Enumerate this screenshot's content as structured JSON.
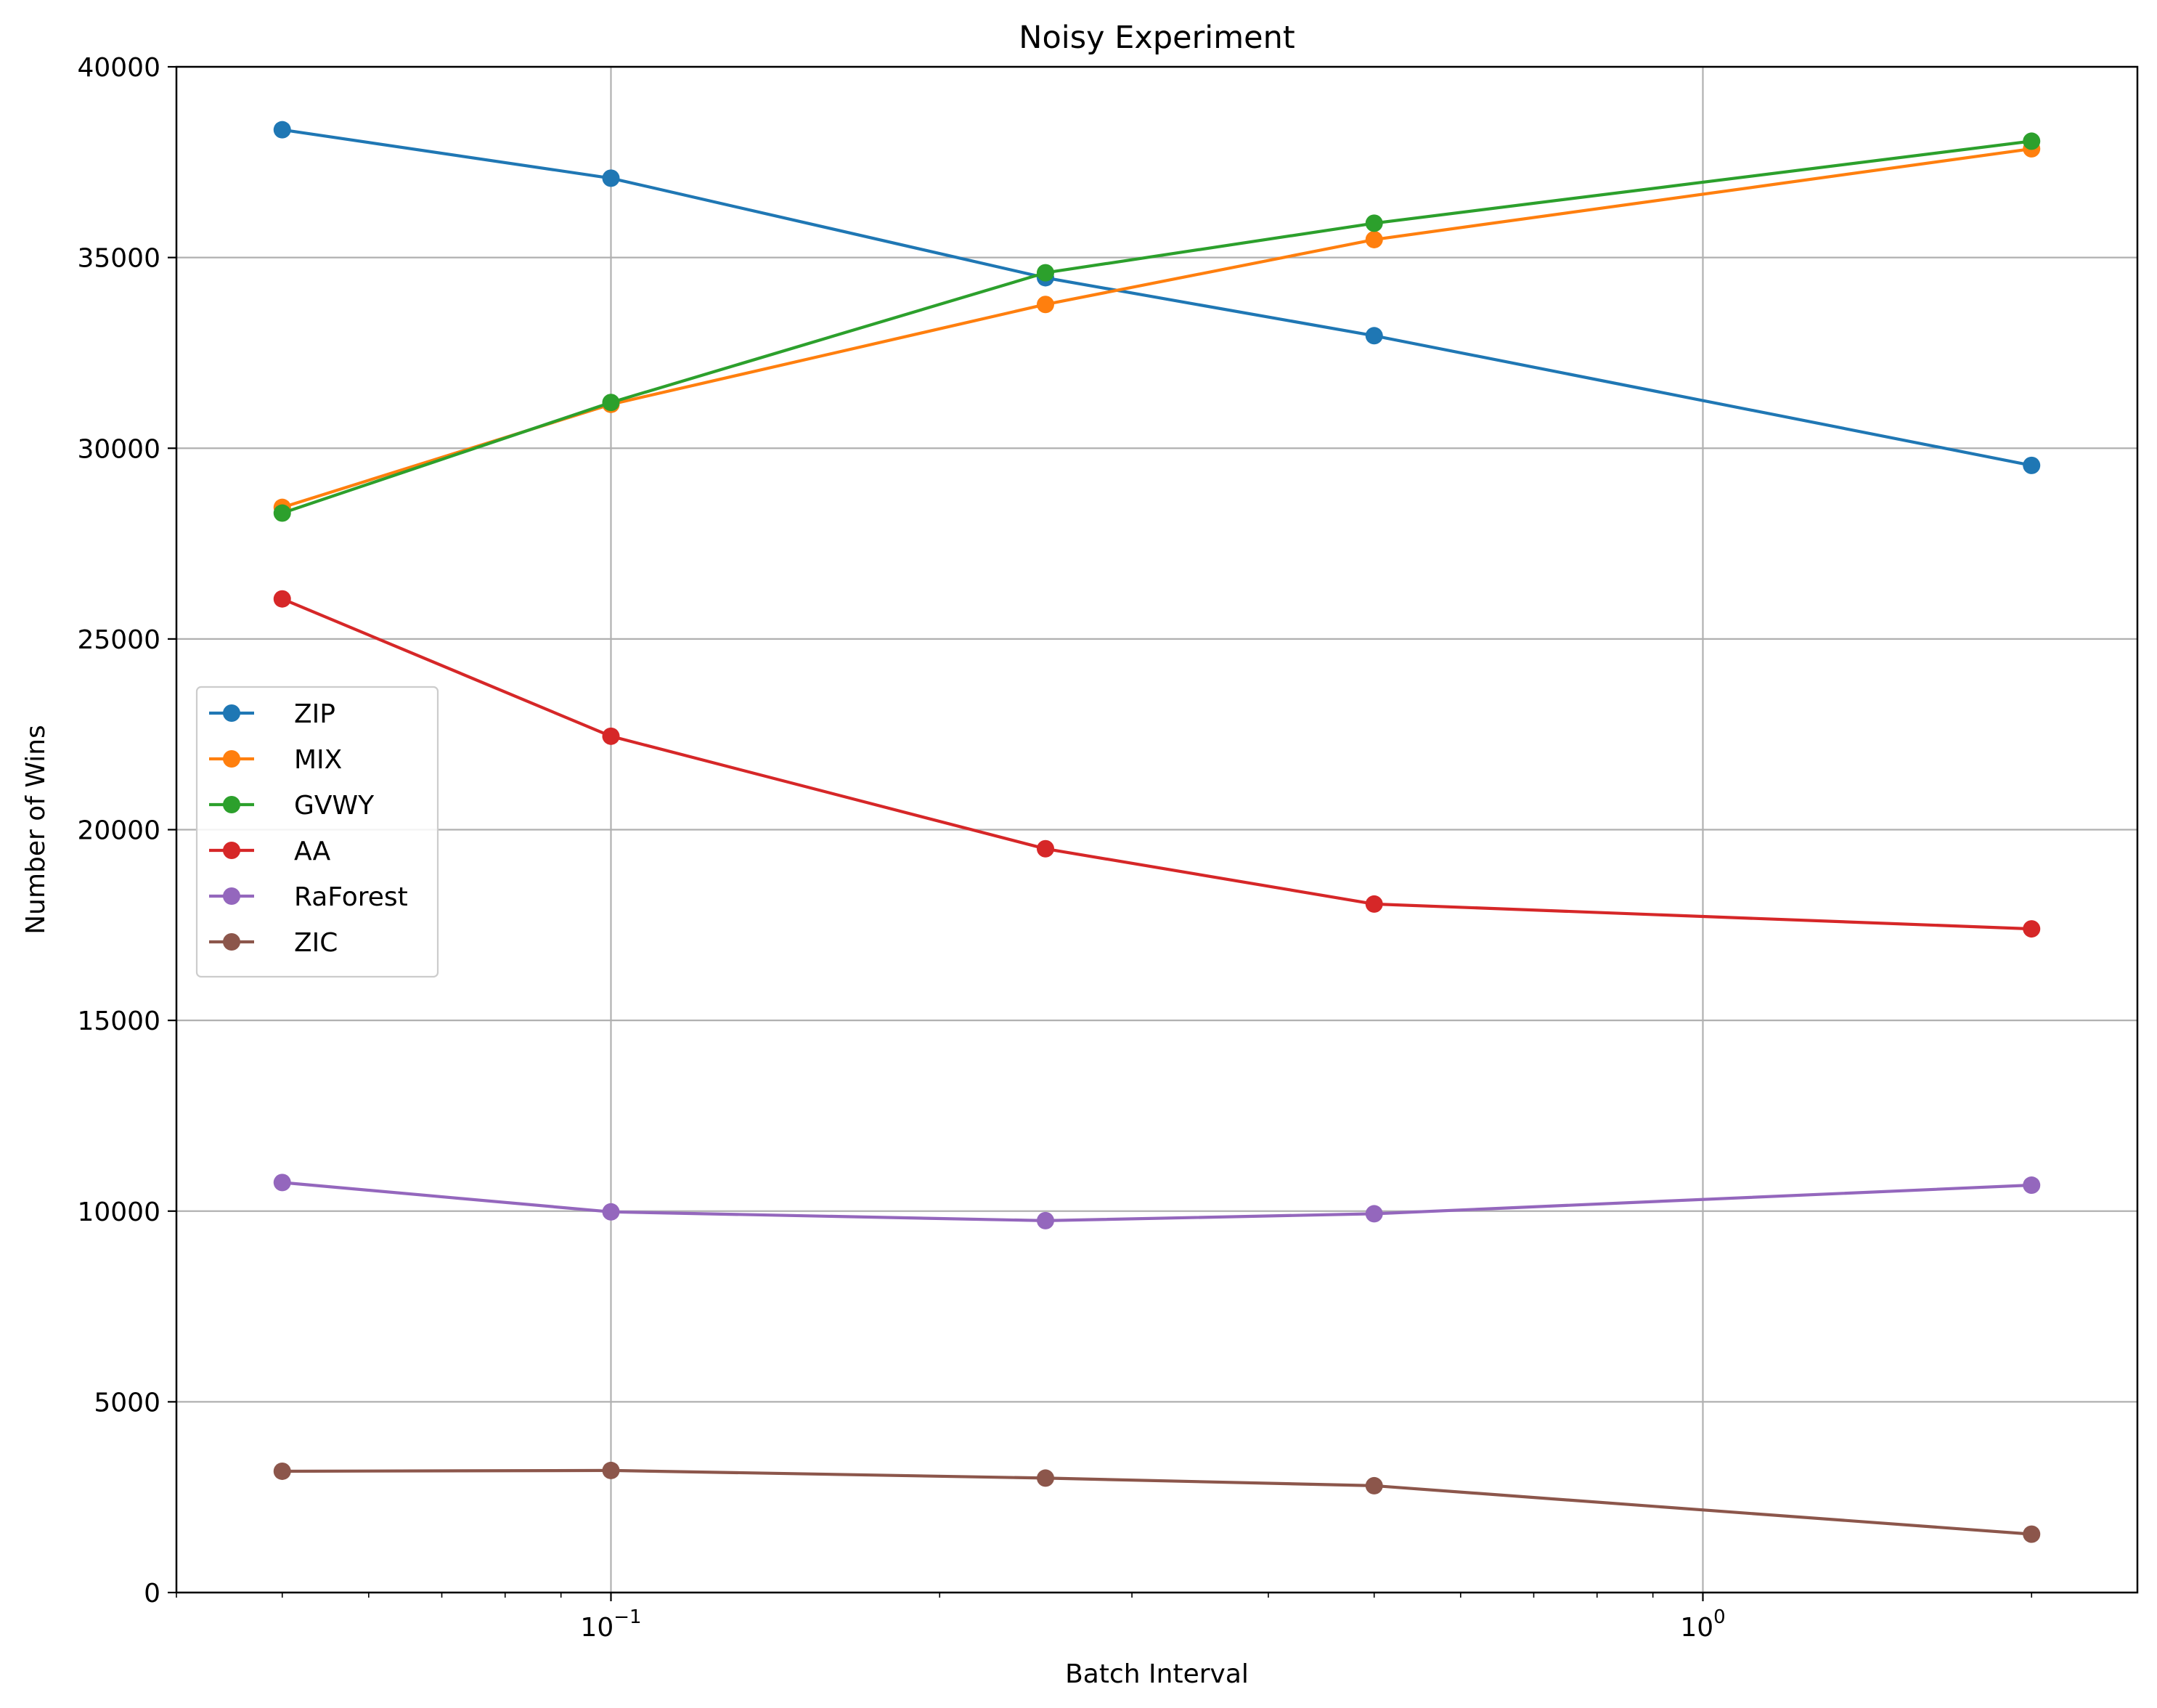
{
  "chart_data": {
    "type": "line",
    "title": "Noisy Experiment",
    "xlabel": "Batch Interval",
    "ylabel": "Number of Wins",
    "x_scale": "log",
    "xlim": [
      0.04,
      2.5
    ],
    "ylim": [
      0,
      40000
    ],
    "grid": true,
    "legend_position": "center-left",
    "x": [
      0.05,
      0.1,
      0.25,
      0.5,
      2.0
    ],
    "x_ticks": [
      {
        "value": 0.1,
        "base": "10",
        "exp": "−1"
      },
      {
        "value": 1,
        "base": "10",
        "exp": "0"
      }
    ],
    "y_ticks": [
      {
        "value": 0,
        "label": "0"
      },
      {
        "value": 5000,
        "label": "5000"
      },
      {
        "value": 10000,
        "label": "10000"
      },
      {
        "value": 15000,
        "label": "15000"
      },
      {
        "value": 20000,
        "label": "20000"
      },
      {
        "value": 25000,
        "label": "25000"
      },
      {
        "value": 30000,
        "label": "30000"
      },
      {
        "value": 35000,
        "label": "35000"
      },
      {
        "value": 40000,
        "label": "40000"
      }
    ],
    "series": [
      {
        "name": "ZIP",
        "color": "#1f77b4",
        "values": [
          38350,
          37080,
          34470,
          32950,
          29550
        ]
      },
      {
        "name": "MIX",
        "color": "#ff7f0e",
        "values": [
          28450,
          31150,
          33770,
          35470,
          37850
        ]
      },
      {
        "name": "GVWY",
        "color": "#2ca02c",
        "values": [
          28300,
          31200,
          34600,
          35900,
          38050
        ]
      },
      {
        "name": "AA",
        "color": "#d62728",
        "values": [
          26050,
          22450,
          19500,
          18050,
          17400
        ]
      },
      {
        "name": "RaForest",
        "color": "#9467bd",
        "values": [
          10750,
          9980,
          9750,
          9930,
          10680
        ]
      },
      {
        "name": "ZIC",
        "color": "#8c564b",
        "values": [
          3180,
          3200,
          3000,
          2800,
          1530
        ]
      }
    ]
  }
}
